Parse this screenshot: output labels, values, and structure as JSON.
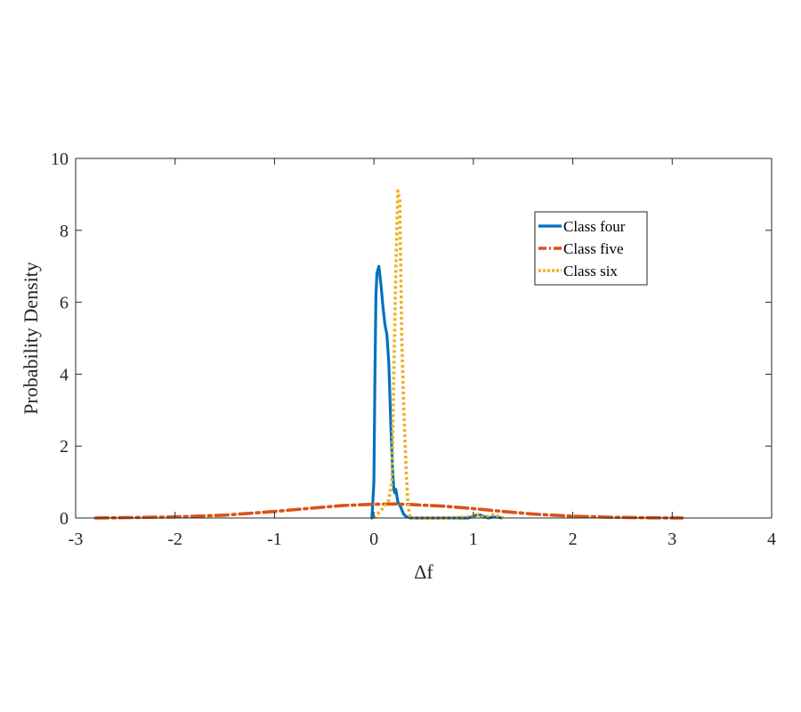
{
  "chart_data": {
    "type": "line",
    "title": "",
    "xlabel": "Δf",
    "ylabel": "Probability Density",
    "xlim": [
      -3,
      4
    ],
    "ylim": [
      0,
      10
    ],
    "xticks": [
      "-3",
      "-2",
      "-1",
      "0",
      "1",
      "2",
      "3",
      "4"
    ],
    "yticks": [
      "0",
      "2",
      "4",
      "6",
      "8",
      "10"
    ],
    "grid": false,
    "legend_position": "top-right",
    "series": [
      {
        "name": "Class four",
        "color": "#0072BD",
        "style": "solid",
        "x": [
          -0.02,
          0.0,
          0.01,
          0.02,
          0.03,
          0.05,
          0.07,
          0.09,
          0.11,
          0.13,
          0.15,
          0.17,
          0.19,
          0.2,
          0.21,
          0.22,
          0.24,
          0.27,
          0.3,
          0.33,
          0.37,
          0.45,
          0.6,
          0.8,
          0.95,
          1.0,
          1.05,
          1.1,
          1.15,
          1.2,
          1.25,
          1.28
        ],
        "y": [
          0.0,
          1.0,
          4.0,
          6.2,
          6.8,
          7.0,
          6.5,
          5.9,
          5.4,
          5.1,
          4.3,
          2.6,
          1.2,
          0.8,
          0.7,
          0.8,
          0.45,
          0.3,
          0.1,
          0.03,
          0.0,
          0.0,
          0.0,
          0.0,
          0.0,
          0.05,
          0.1,
          0.05,
          0.0,
          0.03,
          0.02,
          0.0
        ]
      },
      {
        "name": "Class five",
        "color": "#D95319",
        "style": "dash-dot",
        "x": [
          -2.8,
          -2.5,
          -2.0,
          -1.5,
          -1.0,
          -0.6,
          -0.3,
          0.0,
          0.2,
          0.4,
          0.7,
          1.0,
          1.3,
          1.6,
          2.0,
          2.4,
          2.8,
          3.1
        ],
        "y": [
          0.0,
          0.01,
          0.03,
          0.08,
          0.18,
          0.28,
          0.35,
          0.38,
          0.39,
          0.37,
          0.33,
          0.26,
          0.18,
          0.11,
          0.05,
          0.02,
          0.005,
          0.0
        ]
      },
      {
        "name": "Class six",
        "color": "#EDB120",
        "style": "dotted",
        "x": [
          0.0,
          0.1,
          0.15,
          0.18,
          0.2,
          0.22,
          0.24,
          0.26,
          0.28,
          0.3,
          0.32,
          0.34,
          0.36,
          0.4,
          0.5,
          0.7,
          0.9,
          1.0,
          1.05,
          1.1,
          1.15,
          1.2,
          1.25,
          1.3
        ],
        "y": [
          0.0,
          0.3,
          0.5,
          1.0,
          4.0,
          6.8,
          9.1,
          8.8,
          5.0,
          3.0,
          1.6,
          0.5,
          0.05,
          0.0,
          0.0,
          0.0,
          0.02,
          0.05,
          0.1,
          0.02,
          0.05,
          0.1,
          0.05,
          0.0
        ]
      }
    ]
  }
}
